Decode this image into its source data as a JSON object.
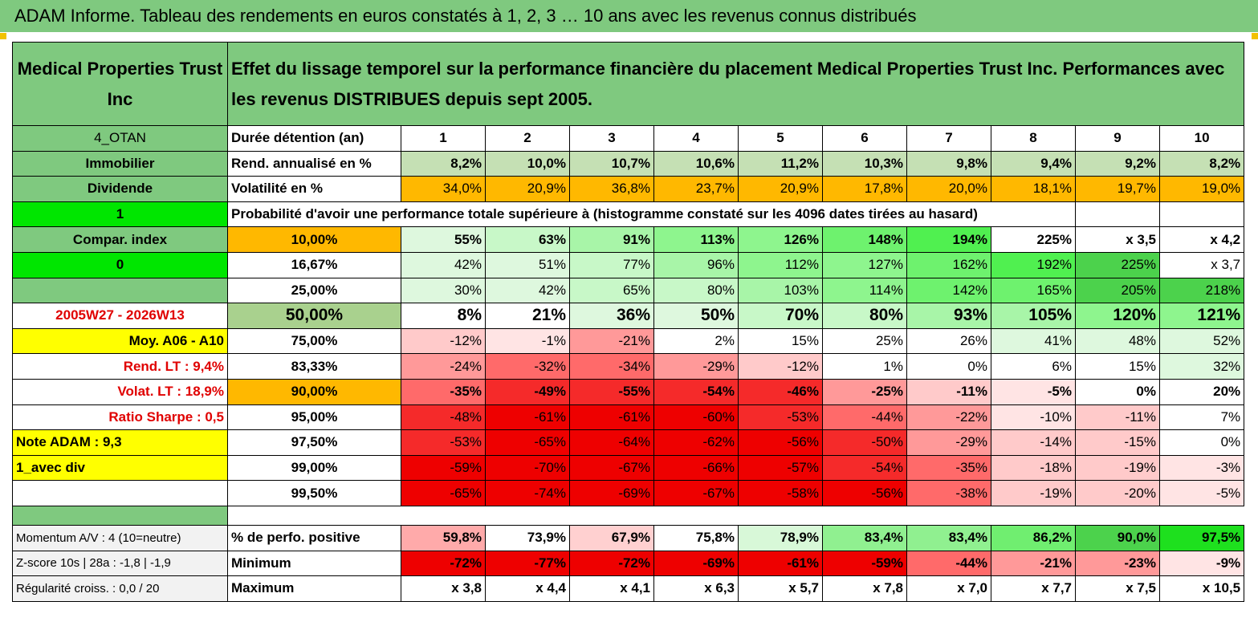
{
  "title": "ADAM Informe. Tableau des rendements en euros constatés à 1, 2, 3 … 10 ans avec les revenus connus distribués",
  "header": {
    "name": "Medical Properties Trust Inc",
    "description": "Effet du lissage temporel sur la performance financière du placement Medical Properties Trust Inc. Performances avec les revenus DISTRIBUES depuis sept 2005."
  },
  "side": {
    "code": "4_OTAN",
    "sector": "Immobilier",
    "type": "Dividende",
    "flag1": "1",
    "compar": "Compar. index",
    "flag0": "0",
    "period": "2005W27 - 2026W13",
    "moy": "Moy. A06 - A10",
    "rend_lt": "Rend. LT :   9,4%",
    "volat_lt": "Volat. LT :   18,9%",
    "sharpe": "Ratio Sharpe :    0,5",
    "note": "Note ADAM : 9,3",
    "avec_div": "1_avec div",
    "momentum": "Momentum A/V : 4 (10=neutre)",
    "zscore": "Z-score 10s | 28a : -1,8 | -1,9",
    "regularite": "Régularité croiss. : 0,0 / 20"
  },
  "labels": {
    "duree": "Durée détention (an)",
    "rend": "Rend. annualisé en %",
    "volat": "Volatilité en %",
    "proba": "Probabilité d'avoir une performance totale supérieure à (histogramme constaté sur les 4096 dates tirées au hasard)",
    "perfo_pos": "% de perfo. positive",
    "minimum": "Minimum",
    "maximum": "Maximum"
  },
  "years": [
    "1",
    "2",
    "3",
    "4",
    "5",
    "6",
    "7",
    "8",
    "9",
    "10"
  ],
  "rend": [
    "8,2%",
    "10,0%",
    "10,7%",
    "10,6%",
    "11,2%",
    "10,3%",
    "9,8%",
    "9,4%",
    "9,2%",
    "8,2%"
  ],
  "volat": [
    "34,0%",
    "20,9%",
    "36,8%",
    "23,7%",
    "20,9%",
    "17,8%",
    "20,0%",
    "18,1%",
    "19,7%",
    "19,0%"
  ],
  "prob_rows": [
    {
      "p": "10,00%",
      "v": [
        "55%",
        "63%",
        "91%",
        "113%",
        "126%",
        "148%",
        "194%",
        "225%",
        "x 3,5",
        "x 4,2"
      ]
    },
    {
      "p": "16,67%",
      "v": [
        "42%",
        "51%",
        "77%",
        "96%",
        "112%",
        "127%",
        "162%",
        "192%",
        "225%",
        "x 3,7"
      ]
    },
    {
      "p": "25,00%",
      "v": [
        "30%",
        "42%",
        "65%",
        "80%",
        "103%",
        "114%",
        "142%",
        "165%",
        "205%",
        "218%"
      ]
    },
    {
      "p": "50,00%",
      "v": [
        "8%",
        "21%",
        "36%",
        "50%",
        "70%",
        "80%",
        "93%",
        "105%",
        "120%",
        "121%"
      ]
    },
    {
      "p": "75,00%",
      "v": [
        "-12%",
        "-1%",
        "-21%",
        "2%",
        "15%",
        "25%",
        "26%",
        "41%",
        "48%",
        "52%"
      ]
    },
    {
      "p": "83,33%",
      "v": [
        "-24%",
        "-32%",
        "-34%",
        "-29%",
        "-12%",
        "1%",
        "0%",
        "6%",
        "15%",
        "32%"
      ]
    },
    {
      "p": "90,00%",
      "v": [
        "-35%",
        "-49%",
        "-55%",
        "-54%",
        "-46%",
        "-25%",
        "-11%",
        "-5%",
        "0%",
        "20%"
      ]
    },
    {
      "p": "95,00%",
      "v": [
        "-48%",
        "-61%",
        "-61%",
        "-60%",
        "-53%",
        "-44%",
        "-22%",
        "-10%",
        "-11%",
        "7%"
      ]
    },
    {
      "p": "97,50%",
      "v": [
        "-53%",
        "-65%",
        "-64%",
        "-62%",
        "-56%",
        "-50%",
        "-29%",
        "-14%",
        "-15%",
        "0%"
      ]
    },
    {
      "p": "99,00%",
      "v": [
        "-59%",
        "-70%",
        "-67%",
        "-66%",
        "-57%",
        "-54%",
        "-35%",
        "-18%",
        "-19%",
        "-3%"
      ]
    },
    {
      "p": "99,50%",
      "v": [
        "-65%",
        "-74%",
        "-69%",
        "-67%",
        "-58%",
        "-56%",
        "-38%",
        "-19%",
        "-20%",
        "-5%"
      ]
    }
  ],
  "perfo_pos": [
    "59,8%",
    "73,9%",
    "67,9%",
    "75,8%",
    "78,9%",
    "83,4%",
    "83,4%",
    "86,2%",
    "90,0%",
    "97,5%"
  ],
  "minimum": [
    "-72%",
    "-77%",
    "-72%",
    "-69%",
    "-61%",
    "-59%",
    "-44%",
    "-21%",
    "-23%",
    "-9%"
  ],
  "maximum": [
    "x 3,8",
    "x 4,4",
    "x 4,1",
    "x 6,3",
    "x 5,7",
    "x 7,8",
    "x 7,0",
    "x 7,7",
    "x 7,5",
    "x 10,5"
  ],
  "colors": {
    "header_green": "#7fc97f",
    "bright_green": "#00e600",
    "yellow": "#ffff00",
    "orange": "#ffb800",
    "red": "#e00000"
  }
}
